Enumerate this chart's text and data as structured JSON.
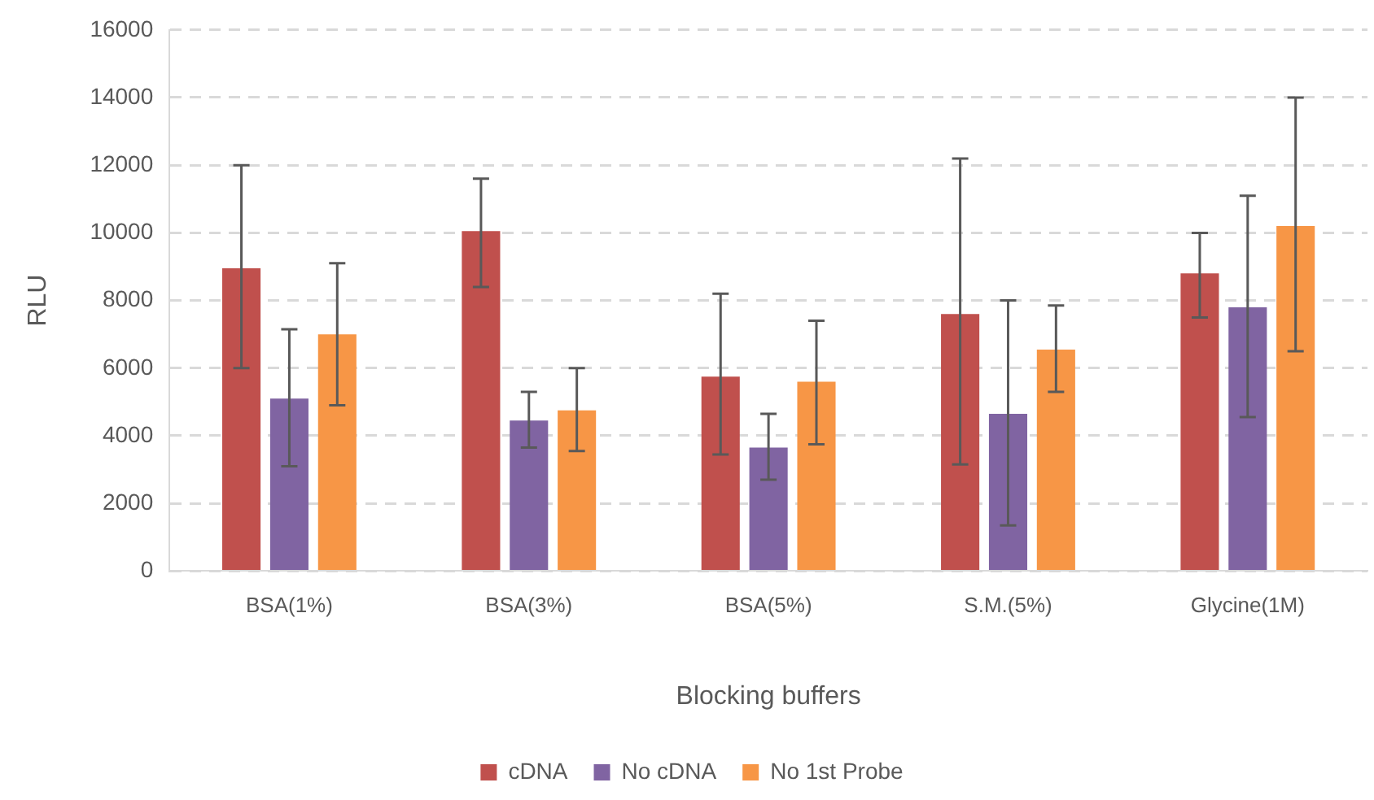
{
  "chart_data": {
    "type": "bar",
    "xlabel": "Blocking buffers",
    "ylabel": "RLU",
    "categories": [
      "BSA(1%)",
      "BSA(3%)",
      "BSA(5%)",
      "S.M.(5%)",
      "Glycine(1M)"
    ],
    "series": [
      {
        "name": "cDNA",
        "color": "#c0504d",
        "values": [
          8950,
          10050,
          5750,
          7600,
          8800
        ],
        "errors": [
          [
            6000,
            12000
          ],
          [
            8400,
            11600
          ],
          [
            3450,
            8200
          ],
          [
            3150,
            12200
          ],
          [
            7500,
            10000
          ]
        ]
      },
      {
        "name": "No cDNA",
        "color": "#8064a2",
        "values": [
          5100,
          4450,
          3650,
          4650,
          7800
        ],
        "errors": [
          [
            3100,
            7150
          ],
          [
            3650,
            5300
          ],
          [
            2700,
            4650
          ],
          [
            1350,
            8000
          ],
          [
            4550,
            11100
          ]
        ]
      },
      {
        "name": "No 1st Probe",
        "color": "#f79646",
        "values": [
          7000,
          4750,
          5600,
          6550,
          10200
        ],
        "errors": [
          [
            4900,
            9100
          ],
          [
            3550,
            6000
          ],
          [
            3750,
            7400
          ],
          [
            5300,
            7850
          ],
          [
            6500,
            14000
          ]
        ]
      }
    ],
    "ylim": [
      0,
      16000
    ],
    "yticks": [
      0,
      2000,
      4000,
      6000,
      8000,
      10000,
      12000,
      14000,
      16000
    ],
    "grid": "y",
    "legend": "bottom"
  }
}
